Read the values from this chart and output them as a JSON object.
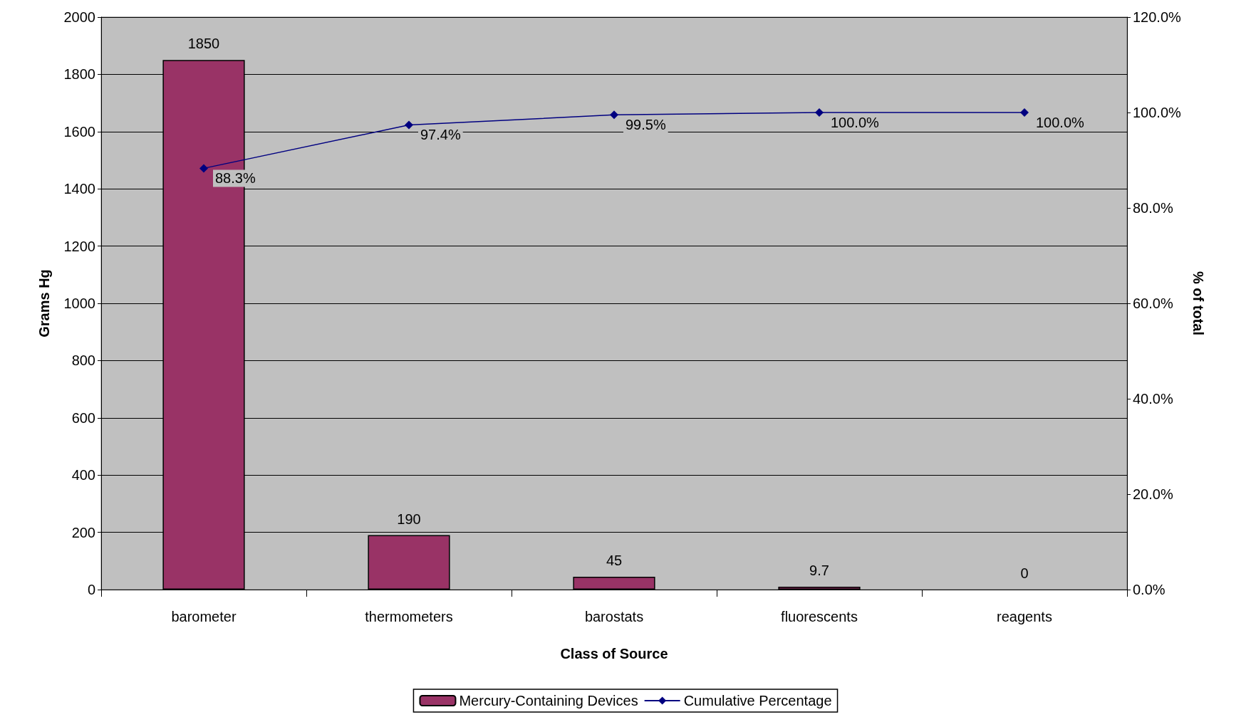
{
  "chart_data": {
    "type": "bar",
    "xlabel": "Class of Source",
    "ylabel": "Grams Hg",
    "y2label": "% of total",
    "categories": [
      "barometer",
      "thermometers",
      "barostats",
      "fluorescents",
      "reagents"
    ],
    "series": [
      {
        "name": "Mercury-Containing Devices",
        "color": "#993366",
        "values": [
          1850,
          190,
          45,
          9.7,
          0
        ],
        "value_labels": [
          "1850",
          "190",
          "45",
          "9.7",
          "0"
        ]
      },
      {
        "name": "Cumulative Percentage",
        "type": "line",
        "axis": "y2",
        "color": "#000080",
        "values": [
          88.3,
          97.4,
          99.5,
          100.0,
          100.0
        ],
        "value_labels": [
          "88.3%",
          "97.4%",
          "99.5%",
          "100.0%",
          "100.0%"
        ]
      }
    ],
    "ylim": [
      0,
      2000
    ],
    "yticks": [
      0,
      200,
      400,
      600,
      800,
      1000,
      1200,
      1400,
      1600,
      1800,
      2000
    ],
    "y2lim": [
      0,
      120
    ],
    "y2ticks": [
      {
        "value": 0,
        "label": "0.0%"
      },
      {
        "value": 20,
        "label": "20.0%"
      },
      {
        "value": 40,
        "label": "40.0%"
      },
      {
        "value": 60,
        "label": "60.0%"
      },
      {
        "value": 80,
        "label": "80.0%"
      },
      {
        "value": 100,
        "label": "100.0%"
      },
      {
        "value": 120,
        "label": "120.0%"
      }
    ],
    "grid": "y",
    "legend": "bottom",
    "marker": "diamond"
  }
}
